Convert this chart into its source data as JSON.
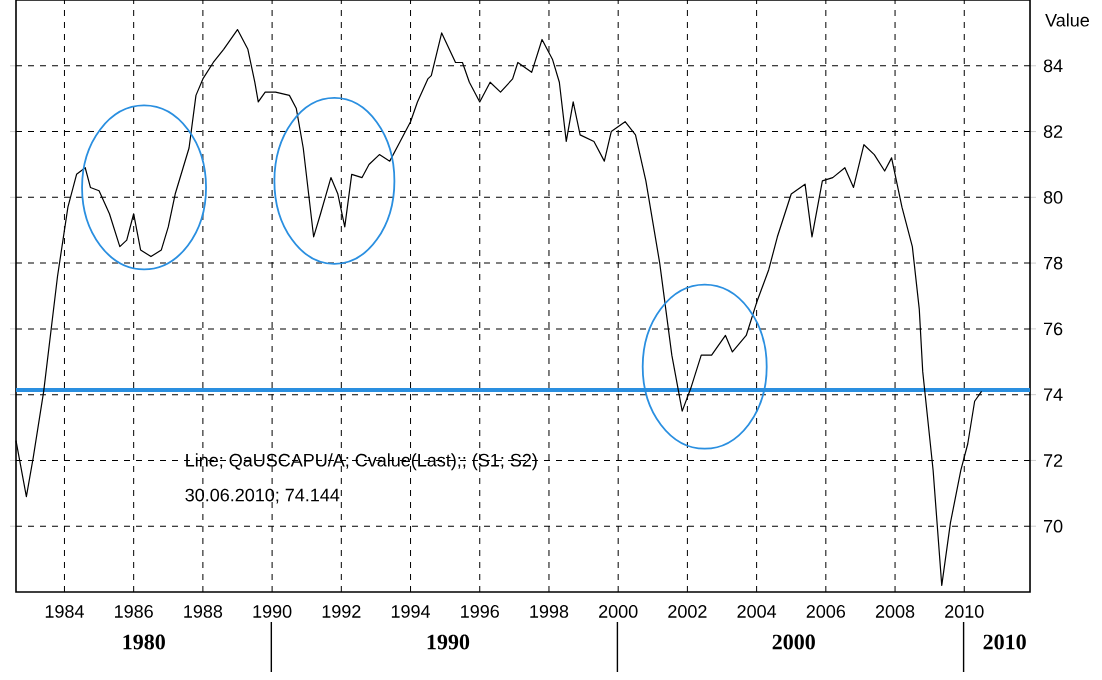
{
  "chart_data": {
    "type": "line",
    "ylabel": "Value",
    "x": [
      1982.6,
      1982.9,
      1983.1,
      1983.4,
      1983.8,
      1984.1,
      1984.35,
      1984.6,
      1984.75,
      1985.0,
      1985.3,
      1985.6,
      1985.8,
      1986.0,
      1986.2,
      1986.5,
      1986.8,
      1987.0,
      1987.2,
      1987.6,
      1987.8,
      1988.0,
      1988.3,
      1988.6,
      1989.0,
      1989.3,
      1989.5,
      1989.6,
      1989.8,
      1990.1,
      1990.5,
      1990.7,
      1990.9,
      1991.2,
      1991.4,
      1991.7,
      1991.9,
      1992.1,
      1992.3,
      1992.6,
      1992.8,
      1993.1,
      1993.4,
      1993.7,
      1994.0,
      1994.2,
      1994.5,
      1994.6,
      1994.9,
      1995.3,
      1995.5,
      1995.7,
      1996.0,
      1996.3,
      1996.6,
      1996.95,
      1997.1,
      1997.5,
      1997.8,
      1998.1,
      1998.3,
      1998.5,
      1998.7,
      1998.9,
      1999.3,
      1999.6,
      1999.8,
      2000.2,
      2000.5,
      2000.8,
      2001.2,
      2001.55,
      2001.85,
      2002.1,
      2002.4,
      2002.7,
      2003.1,
      2003.3,
      2003.7,
      2004.0,
      2004.35,
      2004.6,
      2005.0,
      2005.4,
      2005.6,
      2005.9,
      2006.2,
      2006.55,
      2006.8,
      2007.1,
      2007.4,
      2007.7,
      2007.9,
      2008.2,
      2008.5,
      2008.7,
      2008.8,
      2009.1,
      2009.35,
      2009.6,
      2009.9,
      2010.1,
      2010.3,
      2010.5
    ],
    "series": [
      {
        "color": "#000000",
        "values": [
          72.6,
          70.9,
          72.1,
          74.1,
          77.6,
          79.7,
          80.7,
          80.9,
          80.3,
          80.2,
          79.5,
          78.5,
          78.7,
          79.5,
          78.4,
          78.2,
          78.4,
          79.1,
          80.1,
          81.5,
          83.1,
          83.6,
          84.1,
          84.5,
          85.1,
          84.5,
          83.5,
          82.9,
          83.2,
          83.2,
          83.1,
          82.7,
          81.5,
          78.8,
          79.5,
          80.6,
          80.1,
          79.1,
          80.7,
          80.6,
          81.0,
          81.3,
          81.1,
          81.7,
          82.3,
          82.9,
          83.6,
          83.7,
          85.0,
          84.1,
          84.1,
          83.5,
          82.9,
          83.5,
          83.2,
          83.6,
          84.1,
          83.8,
          84.8,
          84.2,
          83.5,
          81.7,
          82.9,
          81.9,
          81.7,
          81.1,
          82.0,
          82.3,
          81.9,
          80.5,
          78.0,
          75.2,
          73.5,
          74.2,
          75.2,
          75.2,
          75.8,
          75.3,
          75.8,
          76.8,
          77.8,
          78.8,
          80.1,
          80.4,
          78.8,
          80.5,
          80.6,
          80.9,
          80.3,
          81.6,
          81.3,
          80.8,
          81.2,
          79.7,
          78.5,
          76.6,
          74.7,
          71.7,
          68.2,
          70.1,
          71.7,
          72.5,
          73.8,
          74.1
        ]
      }
    ],
    "xlim": [
      1982.6,
      2011.9
    ],
    "xticks": [
      1984,
      1986,
      1988,
      1990,
      1992,
      1994,
      1996,
      1998,
      2000,
      2002,
      2004,
      2006,
      2008,
      2010
    ],
    "ylim": [
      68,
      86
    ],
    "yticks": [
      70,
      72,
      74,
      76,
      78,
      80,
      82,
      84
    ],
    "grid": true,
    "marker": "none",
    "line_style": "solid",
    "ref_lines": [
      {
        "axis": "y",
        "value": 74.144,
        "color": "#2a8fe0"
      }
    ],
    "annotations": [
      "Line; QaUSCAPU/A; Cvalue(Last);; (S1; S2)",
      "30.06.2010; 74.144",
      "1980",
      "1990",
      "2000",
      "2010"
    ]
  }
}
